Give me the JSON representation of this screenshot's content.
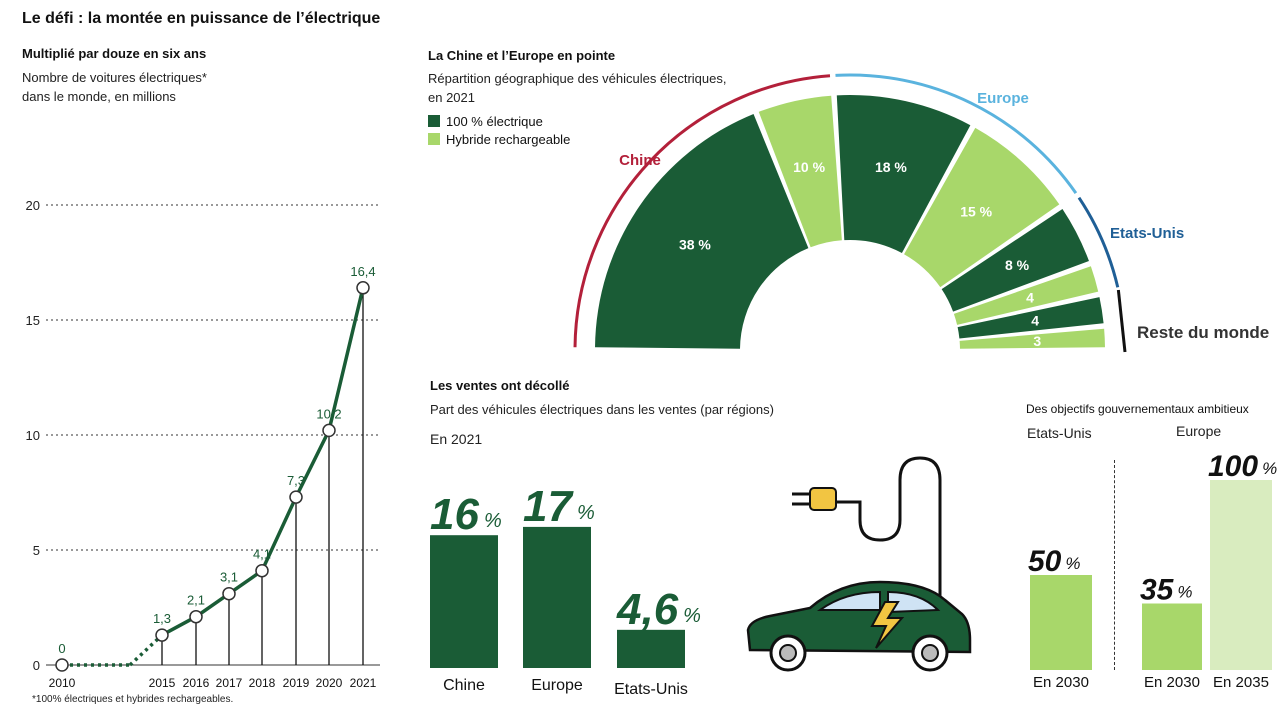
{
  "header": {
    "title": "Le défi : la montée en puissance de l’électrique"
  },
  "colors": {
    "dark_green": "#1a5c36",
    "light_green": "#a8d76a",
    "pale_green": "#d9ecbf",
    "china_red": "#b3203a",
    "europe_blue": "#5ab3de",
    "us_blue": "#1f5f96"
  },
  "line_panel": {
    "heading": "Multiplié par douze en six ans",
    "subtitle_line1": "Nombre de voitures électriques*",
    "subtitle_line2": "dans le monde, en millions",
    "footnote": "*100% électriques et hybrides rechargeables."
  },
  "donut_panel": {
    "heading": "La Chine et l’Europe en pointe",
    "subtitle_line1": "Répartition géographique des véhicules électriques,",
    "subtitle_line2": "en 2021",
    "legend": [
      "100 % électrique",
      "Hybride rechargeable"
    ],
    "region_labels": [
      "Chine",
      "Europe",
      "Etats-Unis",
      "Reste du monde"
    ]
  },
  "sales_panel": {
    "heading": "Les ventes ont décollé",
    "subtitle": "Part des véhicules électriques dans les ventes (par régions)",
    "year_label": "En 2021",
    "percent_sign": "%",
    "car_icon": "electric-car-with-plug-icon"
  },
  "goals_panel": {
    "heading": "Des objectifs gouvernementaux ambitieux",
    "region_us": "Etats-Unis",
    "region_eu": "Europe",
    "percent_sign": "%"
  },
  "chart_data": [
    {
      "type": "line",
      "x": [
        "2010",
        "2015",
        "2016",
        "2017",
        "2018",
        "2019",
        "2020",
        "2021"
      ],
      "values": [
        0,
        1.3,
        2.1,
        3.1,
        4.1,
        7.3,
        10.2,
        16.4
      ],
      "data_labels": [
        "0",
        "1,3",
        "2,1",
        "3,1",
        "4,1",
        "7,3",
        "10,2",
        "16,4"
      ],
      "ylim": [
        0,
        20
      ],
      "yticks": [
        "0",
        "5",
        "10",
        "15",
        "20"
      ],
      "grid": true
    },
    {
      "type": "pie",
      "variant": "half-donut",
      "slices": [
        {
          "group": "Chine",
          "kind": "100 % électrique",
          "value": 38,
          "label": "38 %"
        },
        {
          "group": "Chine",
          "kind": "Hybride rechargeable",
          "value": 10,
          "label": "10 %"
        },
        {
          "group": "Europe",
          "kind": "100 % électrique",
          "value": 18,
          "label": "18 %"
        },
        {
          "group": "Europe",
          "kind": "Hybride rechargeable",
          "value": 15,
          "label": "15 %"
        },
        {
          "group": "Etats-Unis",
          "kind": "100 % électrique",
          "value": 8,
          "label": "8 %"
        },
        {
          "group": "Etats-Unis",
          "kind": "Hybride rechargeable",
          "value": 4,
          "label": "4"
        },
        {
          "group": "Reste du monde",
          "kind": "100 % électrique",
          "value": 4,
          "label": "4"
        },
        {
          "group": "Reste du monde",
          "kind": "Hybride rechargeable",
          "value": 3,
          "label": "3"
        }
      ]
    },
    {
      "type": "bar",
      "categories": [
        "Chine",
        "Europe",
        "Etats-Unis"
      ],
      "values": [
        16,
        17,
        4.6
      ],
      "data_labels": [
        "16",
        "17",
        "4,6"
      ]
    },
    {
      "type": "bar",
      "series": [
        {
          "name": "Etats-Unis",
          "categories": [
            "En 2030"
          ],
          "values": [
            50
          ],
          "data_labels": [
            "50"
          ]
        },
        {
          "name": "Europe",
          "categories": [
            "En 2030",
            "En 2035"
          ],
          "values": [
            35,
            100
          ],
          "data_labels": [
            "35",
            "100"
          ]
        }
      ],
      "ylim": [
        0,
        100
      ]
    }
  ]
}
